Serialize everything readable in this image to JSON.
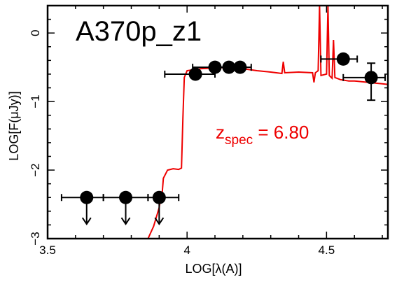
{
  "chart_data": {
    "type": "scatter",
    "title": "A370p_z1",
    "xlabel": "LOG[λ(A)]",
    "ylabel": "LOG[F(μJy)]",
    "xlim": [
      3.5,
      4.72
    ],
    "ylim": [
      -3,
      0.4
    ],
    "xticks": [
      3.5,
      4,
      4.5
    ],
    "xtick_labels": [
      "3.5",
      "4",
      "4.5"
    ],
    "yticks": [
      0,
      -1,
      -2,
      -3
    ],
    "ytick_labels": [
      "0",
      "−1",
      "−2",
      "−3"
    ],
    "annotation": {
      "main": "z",
      "sub": "spec",
      "rest": " = 6.80",
      "color": "#ee0000"
    },
    "colors": {
      "model": "#ee0000",
      "points": "#000000",
      "axes": "#000000"
    },
    "series": [
      {
        "kind": "upper_limits",
        "points": [
          {
            "x": 3.64,
            "y": -2.4,
            "xerr": [
              0.09,
              0.06
            ]
          },
          {
            "x": 3.78,
            "y": -2.4,
            "xerr": [
              0.08,
              0.08
            ]
          },
          {
            "x": 3.9,
            "y": -2.4,
            "xerr": [
              0.04,
              0.07
            ]
          }
        ]
      },
      {
        "kind": "detections",
        "points": [
          {
            "x": 4.03,
            "y": -0.6,
            "xerr": [
              0.11,
              0.07
            ],
            "yerr": [
              0,
              0
            ]
          },
          {
            "x": 4.1,
            "y": -0.5,
            "xerr": [
              0.08,
              0.06
            ],
            "yerr": [
              0,
              0
            ]
          },
          {
            "x": 4.15,
            "y": -0.5,
            "xerr": [
              0.05,
              0.05
            ],
            "yerr": [
              0,
              0
            ]
          },
          {
            "x": 4.19,
            "y": -0.5,
            "xerr": [
              0.04,
              0.04
            ],
            "yerr": [
              0,
              0
            ]
          },
          {
            "x": 4.56,
            "y": -0.38,
            "xerr": [
              0.08,
              0.05
            ],
            "yerr": [
              0,
              0
            ]
          },
          {
            "x": 4.66,
            "y": -0.65,
            "xerr": [
              0.1,
              0.05
            ],
            "yerr": [
              0.33,
              0.21
            ]
          }
        ]
      },
      {
        "kind": "model_sed",
        "points": [
          [
            3.86,
            -3.0
          ],
          [
            3.88,
            -2.82
          ],
          [
            3.9,
            -2.55
          ],
          [
            3.905,
            -2.42
          ],
          [
            3.91,
            -2.38
          ],
          [
            3.915,
            -2.12
          ],
          [
            3.93,
            -2.0
          ],
          [
            3.95,
            -1.98
          ],
          [
            3.97,
            -1.99
          ],
          [
            3.98,
            -1.97
          ],
          [
            3.985,
            -1.25
          ],
          [
            3.99,
            -0.65
          ],
          [
            4.0,
            -0.55
          ],
          [
            4.05,
            -0.52
          ],
          [
            4.1,
            -0.51
          ],
          [
            4.15,
            -0.5
          ],
          [
            4.2,
            -0.52
          ],
          [
            4.25,
            -0.55
          ],
          [
            4.3,
            -0.57
          ],
          [
            4.34,
            -0.59
          ],
          [
            4.345,
            -0.42
          ],
          [
            4.35,
            -0.58
          ],
          [
            4.4,
            -0.57
          ],
          [
            4.45,
            -0.58
          ],
          [
            4.455,
            -0.72
          ],
          [
            4.46,
            -0.58
          ],
          [
            4.47,
            -0.55
          ],
          [
            4.475,
            0.4
          ],
          [
            4.48,
            -0.62
          ],
          [
            4.5,
            -0.6
          ],
          [
            4.505,
            0.4
          ],
          [
            4.51,
            -0.62
          ],
          [
            4.52,
            -0.66
          ],
          [
            4.525,
            -0.1
          ],
          [
            4.53,
            -0.65
          ],
          [
            4.55,
            -0.68
          ],
          [
            4.58,
            -0.7
          ],
          [
            4.6,
            -0.7
          ],
          [
            4.65,
            -0.72
          ],
          [
            4.7,
            -0.74
          ],
          [
            4.72,
            -0.75
          ]
        ]
      }
    ]
  }
}
